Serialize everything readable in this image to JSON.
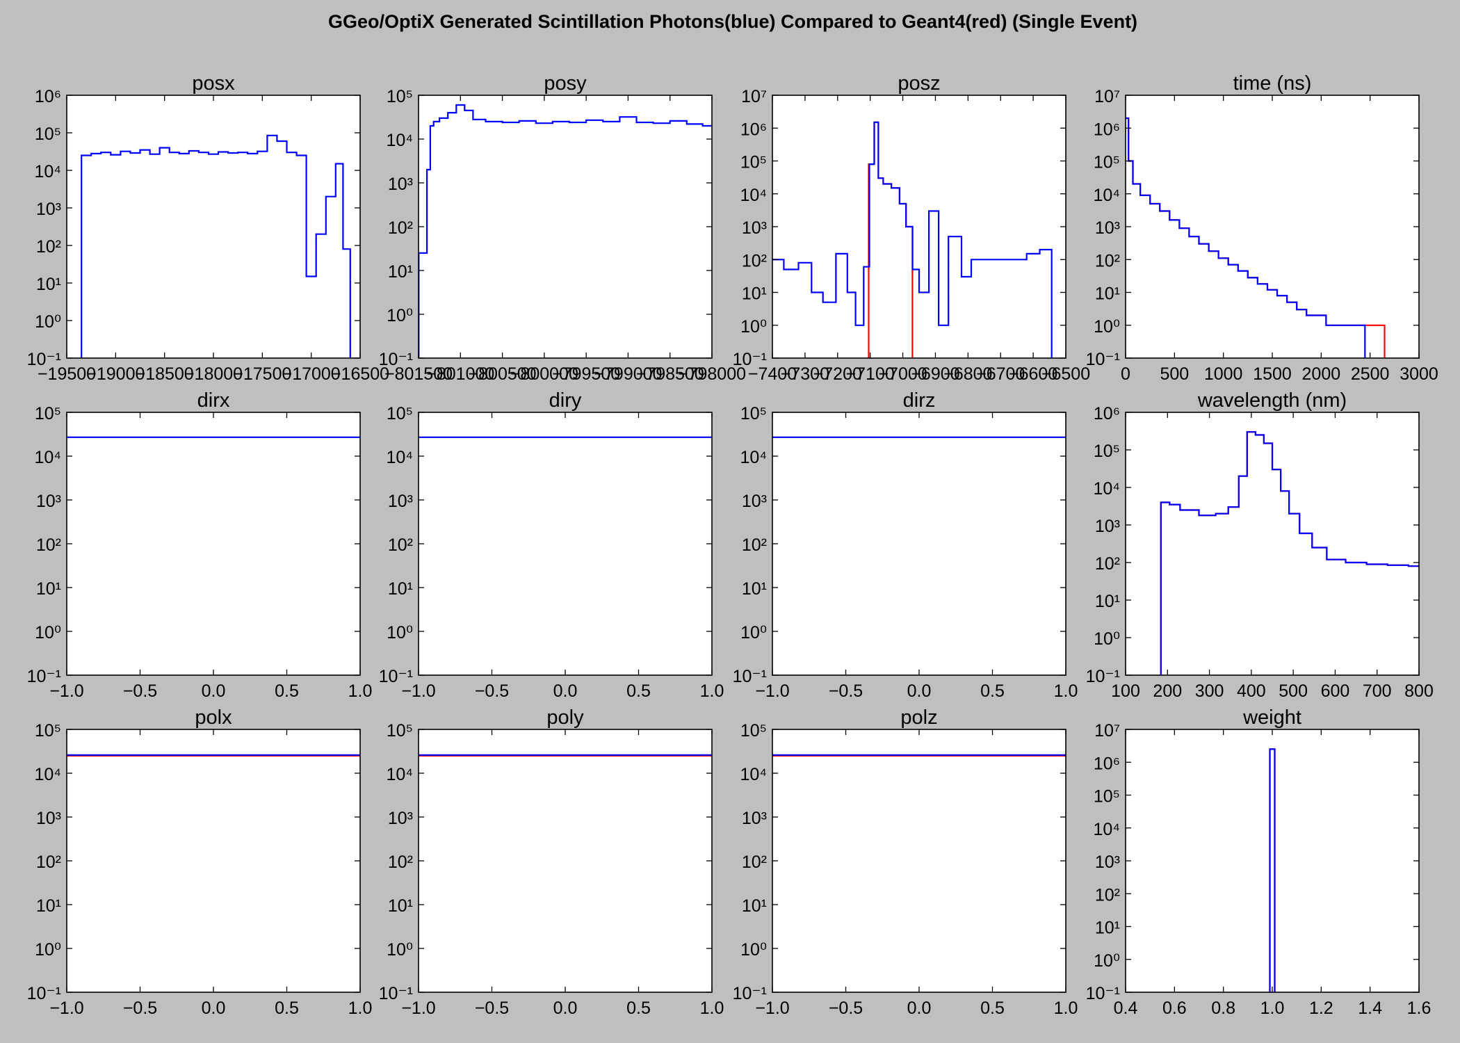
{
  "figure": {
    "title": "GGeo/OptiX Generated Scintillation Photons(blue) Compared to Geant4(red) (Single Event)",
    "background": "#bfbfbf",
    "colors": {
      "opticks": "#0000ff",
      "geant4": "#ff0000"
    }
  },
  "chart_data": [
    {
      "type": "histogram",
      "title": "posx",
      "xlabel": "",
      "ylabel": "",
      "xlim": [
        -19500,
        -16500
      ],
      "yscale": "log",
      "ylim_exp": [
        -1,
        6
      ],
      "xticks": [
        -19500,
        -19000,
        -18500,
        -18000,
        -17500,
        -17000,
        -16500
      ],
      "xticklabels": [
        "−19500",
        "−19000",
        "−18500",
        "−18000",
        "−17500",
        "−17000",
        "−16500"
      ],
      "series": [
        {
          "color": "#0000ff",
          "bins": [
            -19300,
            -19200,
            -19100,
            -19000,
            -18900,
            -18800,
            -18700,
            -18600,
            -18500,
            -18400,
            -18300,
            -18200,
            -18100,
            -18000,
            -17900,
            -17800,
            -17700,
            -17600,
            -17500,
            -17400,
            -17300,
            -17200,
            -17100,
            -17000,
            -16900,
            -16800,
            -16700,
            -16650
          ],
          "counts": [
            25000,
            28000,
            30000,
            26000,
            32000,
            29000,
            35000,
            27000,
            40000,
            30000,
            28000,
            33000,
            30000,
            27000,
            31000,
            29000,
            30000,
            28000,
            32000,
            85000,
            60000,
            30000,
            25000,
            15,
            200,
            2000,
            15000,
            80
          ]
        }
      ]
    },
    {
      "type": "histogram",
      "title": "posy",
      "xlabel": "",
      "ylabel": "",
      "xlim": [
        -801500,
        -798000
      ],
      "yscale": "log",
      "ylim_exp": [
        -1,
        5
      ],
      "xticks": [
        -801500,
        -801000,
        -800500,
        -800000,
        -799500,
        -799000,
        -798500,
        -798000
      ],
      "xticklabels": [
        "−801500",
        "−801000",
        "−800500",
        "−800000",
        "−799500",
        "−799000",
        "−798500",
        "−798000"
      ],
      "series": [
        {
          "color": "#0000ff",
          "bins": [
            -801420,
            -801380,
            -801340,
            -801300,
            -801200,
            -801100,
            -801000,
            -800900,
            -800800,
            -800600,
            -800400,
            -800200,
            -800000,
            -799800,
            -799600,
            -799400,
            -799200,
            -799000,
            -798800,
            -798600,
            -798400,
            -798200,
            -798020
          ],
          "counts": [
            25,
            2000,
            20000,
            25000,
            30000,
            40000,
            60000,
            45000,
            28000,
            25000,
            24000,
            26000,
            23000,
            25000,
            24000,
            27000,
            25000,
            32000,
            24000,
            23000,
            26000,
            22000,
            20000
          ]
        }
      ]
    },
    {
      "type": "histogram",
      "title": "posz",
      "xlabel": "",
      "ylabel": "",
      "xlim": [
        -7400,
        -6500
      ],
      "yscale": "log",
      "ylim_exp": [
        -1,
        7
      ],
      "xticks": [
        -7400,
        -7300,
        -7200,
        -7100,
        -7000,
        -6900,
        -6800,
        -6700,
        -6600,
        -6500
      ],
      "xticklabels": [
        "−7400",
        "−7300",
        "−7200",
        "−7100",
        "−7000",
        "−6900",
        "−6800",
        "−6700",
        "−6600",
        "−6500"
      ],
      "series": [
        {
          "color": "#ff0000",
          "bins": [
            -7095,
            -7080,
            -7070,
            -7050,
            -7020,
            -7000,
            -6980
          ],
          "counts": [
            80000,
            1500000,
            30000,
            20000,
            15000,
            5000,
            1000
          ]
        },
        {
          "color": "#0000ff",
          "bins": [
            -7390,
            -7340,
            -7300,
            -7260,
            -7230,
            -7180,
            -7160,
            -7130,
            -7110,
            -7095,
            -7080,
            -7070,
            -7050,
            -7020,
            -7000,
            -6980,
            -6960,
            -6940,
            -6900,
            -6880,
            -6840,
            -6800,
            -6780,
            -6640,
            -6600,
            -6560
          ],
          "counts": [
            100,
            50,
            80,
            10,
            5,
            150,
            10,
            1,
            60,
            80000,
            1500000,
            30000,
            20000,
            15000,
            5000,
            1000,
            50,
            10,
            3000,
            1,
            500,
            30,
            100,
            100,
            150,
            200
          ]
        }
      ]
    },
    {
      "type": "histogram",
      "title": "time (ns)",
      "xlabel": "",
      "ylabel": "",
      "xlim": [
        0,
        3000
      ],
      "yscale": "log",
      "ylim_exp": [
        -1,
        7
      ],
      "xticks": [
        0,
        500,
        1000,
        1500,
        2000,
        2500,
        3000
      ],
      "xticklabels": [
        "0",
        "500",
        "1000",
        "1500",
        "2000",
        "2500",
        "3000"
      ],
      "series": [
        {
          "color": "#ff0000",
          "bins": [
            10,
            50,
            100,
            200,
            300,
            400,
            500,
            600,
            700,
            800,
            900,
            1000,
            1100,
            1200,
            1300,
            1400,
            1500,
            1600,
            1700,
            1800,
            1900,
            2000,
            2100,
            2200,
            2300,
            2400,
            2500,
            2600
          ],
          "counts": [
            2000000,
            100000,
            20000,
            9000,
            5000,
            3000,
            1600,
            900,
            500,
            300,
            180,
            110,
            70,
            45,
            28,
            18,
            12,
            8,
            5,
            3,
            2,
            2,
            1,
            1,
            1,
            1,
            1,
            1
          ]
        },
        {
          "color": "#0000ff",
          "bins": [
            10,
            50,
            100,
            200,
            300,
            400,
            500,
            600,
            700,
            800,
            900,
            1000,
            1100,
            1200,
            1300,
            1400,
            1500,
            1600,
            1700,
            1800,
            1900,
            2000,
            2100,
            2200,
            2300,
            2400
          ],
          "counts": [
            2000000,
            100000,
            20000,
            9000,
            5000,
            3000,
            1600,
            900,
            500,
            300,
            180,
            110,
            70,
            45,
            28,
            18,
            12,
            8,
            5,
            3,
            2,
            2,
            1,
            1,
            1,
            1
          ]
        }
      ]
    },
    {
      "type": "histogram",
      "title": "dirx",
      "xlabel": "",
      "ylabel": "",
      "xlim": [
        -1.0,
        1.0
      ],
      "yscale": "log",
      "ylim_exp": [
        -1,
        5
      ],
      "xticks": [
        -1.0,
        -0.5,
        0.0,
        0.5,
        1.0
      ],
      "xticklabels": [
        "−1.0",
        "−0.5",
        "0.0",
        "0.5",
        "1.0"
      ],
      "series": [
        {
          "color": "#0000ff",
          "bins": [
            -1.0,
            1.0
          ],
          "counts": [
            27000,
            27000
          ]
        }
      ]
    },
    {
      "type": "histogram",
      "title": "diry",
      "xlabel": "",
      "ylabel": "",
      "xlim": [
        -1.0,
        1.0
      ],
      "yscale": "log",
      "ylim_exp": [
        -1,
        5
      ],
      "xticks": [
        -1.0,
        -0.5,
        0.0,
        0.5,
        1.0
      ],
      "xticklabels": [
        "−1.0",
        "−0.5",
        "0.0",
        "0.5",
        "1.0"
      ],
      "series": [
        {
          "color": "#0000ff",
          "bins": [
            -1.0,
            1.0
          ],
          "counts": [
            27000,
            27000
          ]
        }
      ]
    },
    {
      "type": "histogram",
      "title": "dirz",
      "xlabel": "",
      "ylabel": "",
      "xlim": [
        -1.0,
        1.0
      ],
      "yscale": "log",
      "ylim_exp": [
        -1,
        5
      ],
      "xticks": [
        -1.0,
        -0.5,
        0.0,
        0.5,
        1.0
      ],
      "xticklabels": [
        "−1.0",
        "−0.5",
        "0.0",
        "0.5",
        "1.0"
      ],
      "series": [
        {
          "color": "#0000ff",
          "bins": [
            -1.0,
            1.0
          ],
          "counts": [
            27000,
            27000
          ]
        }
      ]
    },
    {
      "type": "histogram",
      "title": "wavelength (nm)",
      "xlabel": "",
      "ylabel": "",
      "xlim": [
        100,
        800
      ],
      "yscale": "log",
      "ylim_exp": [
        -1,
        6
      ],
      "xticks": [
        100,
        200,
        300,
        400,
        500,
        600,
        700,
        800
      ],
      "xticklabels": [
        "100",
        "200",
        "300",
        "400",
        "500",
        "600",
        "700",
        "800"
      ],
      "series": [
        {
          "color": "#ff0000",
          "bins": [
            200,
            210,
            250,
            300,
            330,
            360,
            380,
            400,
            420,
            440,
            460,
            480,
            500,
            530,
            560,
            600,
            650,
            700,
            750,
            800
          ],
          "counts": [
            4000,
            3500,
            2500,
            1800,
            2000,
            3000,
            20000,
            300000,
            250000,
            150000,
            30000,
            8000,
            2000,
            600,
            250,
            120,
            100,
            90,
            85,
            80
          ]
        },
        {
          "color": "#0000ff",
          "bins": [
            200,
            210,
            250,
            300,
            330,
            360,
            380,
            400,
            420,
            440,
            460,
            480,
            500,
            530,
            560,
            600,
            650,
            700,
            750,
            800
          ],
          "counts": [
            4000,
            3500,
            2500,
            1800,
            2000,
            3000,
            20000,
            300000,
            250000,
            150000,
            30000,
            8000,
            2000,
            600,
            250,
            120,
            100,
            90,
            85,
            80
          ]
        }
      ]
    },
    {
      "type": "histogram",
      "title": "polx",
      "xlabel": "",
      "ylabel": "",
      "xlim": [
        -1.0,
        1.0
      ],
      "yscale": "log",
      "ylim_exp": [
        -1,
        5
      ],
      "xticks": [
        -1.0,
        -0.5,
        0.0,
        0.5,
        1.0
      ],
      "xticklabels": [
        "−1.0",
        "−0.5",
        "0.0",
        "0.5",
        "1.0"
      ],
      "series": [
        {
          "color": "#ff0000",
          "bins": [
            -1.0,
            1.0
          ],
          "counts": [
            25000,
            25000
          ]
        },
        {
          "color": "#0000ff",
          "bins": [
            -1.0,
            1.0
          ],
          "counts": [
            26000,
            26000
          ]
        }
      ]
    },
    {
      "type": "histogram",
      "title": "poly",
      "xlabel": "",
      "ylabel": "",
      "xlim": [
        -1.0,
        1.0
      ],
      "yscale": "log",
      "ylim_exp": [
        -1,
        5
      ],
      "xticks": [
        -1.0,
        -0.5,
        0.0,
        0.5,
        1.0
      ],
      "xticklabels": [
        "−1.0",
        "−0.5",
        "0.0",
        "0.5",
        "1.0"
      ],
      "series": [
        {
          "color": "#ff0000",
          "bins": [
            -1.0,
            1.0
          ],
          "counts": [
            25000,
            25000
          ]
        },
        {
          "color": "#0000ff",
          "bins": [
            -1.0,
            1.0
          ],
          "counts": [
            26000,
            26000
          ]
        }
      ]
    },
    {
      "type": "histogram",
      "title": "polz",
      "xlabel": "",
      "ylabel": "",
      "xlim": [
        -1.0,
        1.0
      ],
      "yscale": "log",
      "ylim_exp": [
        -1,
        5
      ],
      "xticks": [
        -1.0,
        -0.5,
        0.0,
        0.5,
        1.0
      ],
      "xticklabels": [
        "−1.0",
        "−0.5",
        "0.0",
        "0.5",
        "1.0"
      ],
      "series": [
        {
          "color": "#ff0000",
          "bins": [
            -1.0,
            1.0
          ],
          "counts": [
            25000,
            25000
          ]
        },
        {
          "color": "#0000ff",
          "bins": [
            -1.0,
            1.0
          ],
          "counts": [
            26000,
            26000
          ]
        }
      ]
    },
    {
      "type": "histogram",
      "title": "weight",
      "xlabel": "",
      "ylabel": "",
      "xlim": [
        0.4,
        1.6
      ],
      "yscale": "log",
      "ylim_exp": [
        -1,
        7
      ],
      "xticks": [
        0.4,
        0.6,
        0.8,
        1.0,
        1.2,
        1.4,
        1.6
      ],
      "xticklabels": [
        "0.4",
        "0.6",
        "0.8",
        "1.0",
        "1.2",
        "1.4",
        "1.6"
      ],
      "series": [
        {
          "color": "#ff0000",
          "bins": [
            0.995,
            1.005
          ],
          "counts": [
            2500000,
            2500000
          ]
        },
        {
          "color": "#0000ff",
          "bins": [
            0.995,
            1.005
          ],
          "counts": [
            2500000,
            2500000
          ]
        }
      ]
    }
  ]
}
